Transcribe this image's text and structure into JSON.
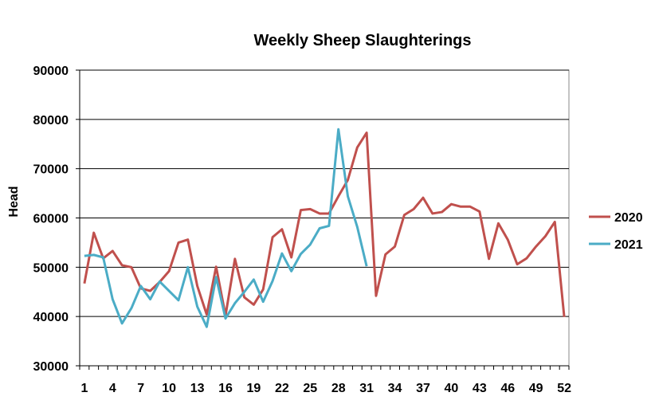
{
  "chart_data": {
    "type": "line",
    "title": "Weekly Sheep Slaughterings",
    "xlabel": "",
    "ylabel": "Head",
    "ylim": [
      30000,
      90000
    ],
    "yticks": [
      30000,
      40000,
      50000,
      60000,
      70000,
      80000,
      90000
    ],
    "ytick_labels": [
      "30000",
      "40000",
      "50000",
      "60000",
      "70000",
      "80000",
      "90000"
    ],
    "xlim": [
      1,
      52
    ],
    "xtick_labels": [
      "1",
      "4",
      "7",
      "10",
      "13",
      "16",
      "19",
      "22",
      "25",
      "28",
      "31",
      "34",
      "37",
      "40",
      "43",
      "46",
      "49",
      "52"
    ],
    "xticks": [
      1,
      4,
      7,
      10,
      13,
      16,
      19,
      22,
      25,
      28,
      31,
      34,
      37,
      40,
      43,
      46,
      49,
      52
    ],
    "grid": "horizontal",
    "legend_position": "right",
    "series": [
      {
        "name": "2020",
        "color": "#c0504d",
        "x": [
          1,
          2,
          3,
          4,
          5,
          6,
          7,
          8,
          9,
          10,
          11,
          12,
          13,
          14,
          15,
          16,
          17,
          18,
          19,
          20,
          21,
          22,
          23,
          24,
          25,
          26,
          27,
          28,
          29,
          30,
          31,
          32,
          33,
          34,
          35,
          36,
          37,
          38,
          39,
          40,
          41,
          42,
          43,
          44,
          45,
          46,
          47,
          48,
          49,
          50,
          51,
          52
        ],
        "values": [
          46700,
          57000,
          51800,
          53300,
          50400,
          50000,
          45700,
          45200,
          47000,
          49200,
          55000,
          55600,
          46200,
          40400,
          50100,
          40200,
          51700,
          43900,
          42400,
          45500,
          56100,
          57700,
          52000,
          61600,
          61800,
          60900,
          60900,
          64400,
          67700,
          74300,
          77300,
          44200,
          52600,
          54200,
          60600,
          61800,
          64100,
          60900,
          61200,
          62800,
          62300,
          62300,
          61300,
          51700,
          58900,
          55600,
          50600,
          51800,
          54200,
          56300,
          59200,
          39900
        ]
      },
      {
        "name": "2021",
        "color": "#4bacc6",
        "x": [
          1,
          2,
          3,
          4,
          5,
          6,
          7,
          8,
          9,
          10,
          11,
          12,
          13,
          14,
          15,
          16,
          17,
          18,
          19,
          20,
          21,
          22,
          23,
          24,
          25,
          26,
          27,
          28,
          29,
          30,
          31
        ],
        "values": [
          52300,
          52500,
          52000,
          43500,
          38600,
          41700,
          46200,
          43500,
          47100,
          45200,
          43300,
          50000,
          42000,
          37900,
          48000,
          39600,
          42700,
          45000,
          47500,
          43000,
          47200,
          52800,
          49200,
          52700,
          54600,
          57900,
          58400,
          78000,
          64400,
          58200,
          50200
        ]
      }
    ]
  }
}
